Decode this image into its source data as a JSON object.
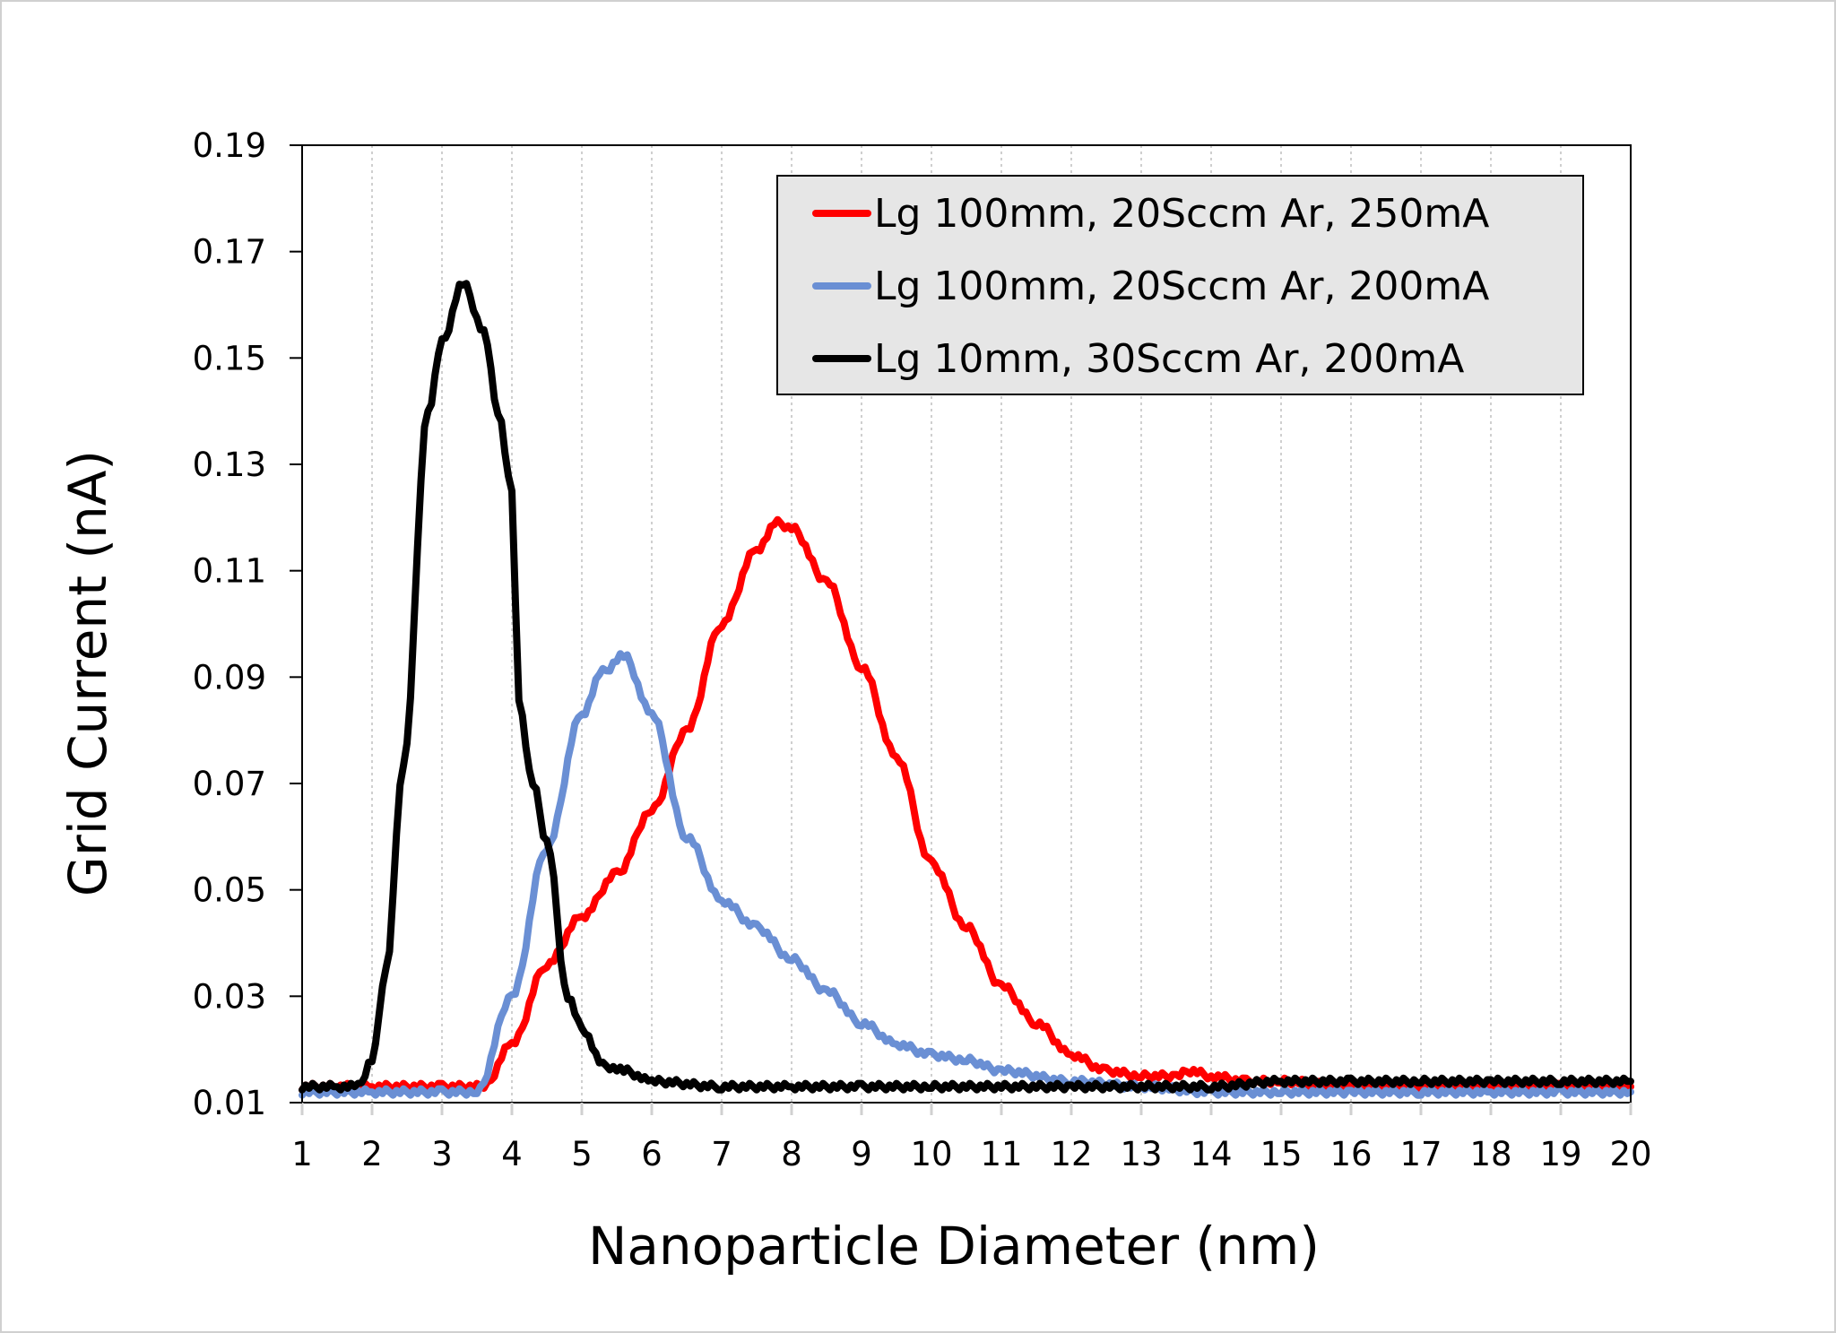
{
  "chart_data": {
    "type": "line",
    "title": "",
    "xlabel": "Nanoparticle Diameter (nm)",
    "ylabel": "Grid Current (nA)",
    "xlim": [
      1,
      20
    ],
    "ylim": [
      0.01,
      0.19
    ],
    "xticks": [
      "1",
      "2",
      "3",
      "4",
      "5",
      "6",
      "7",
      "8",
      "9",
      "10",
      "11",
      "12",
      "13",
      "14",
      "15",
      "16",
      "17",
      "18",
      "19",
      "20"
    ],
    "yticks": [
      "0.01",
      "0.03",
      "0.05",
      "0.07",
      "0.09",
      "0.11",
      "0.13",
      "0.15",
      "0.17",
      "0.19"
    ],
    "grid": "vertical-dotted",
    "legend_position": "top-right",
    "series": [
      {
        "name": "Lg 100mm, 20Sccm Ar, 250mA",
        "color": "#ff0000",
        "x": [
          1,
          2,
          3,
          3.6,
          4,
          4.5,
          5,
          5.5,
          6,
          6.5,
          7,
          7.5,
          7.8,
          8,
          8.5,
          9,
          9.5,
          10,
          10.5,
          11,
          11.5,
          12,
          12.5,
          13,
          13.5,
          13.7,
          14,
          14.5,
          15,
          16,
          17,
          18,
          19,
          20
        ],
        "y": [
          0.013,
          0.013,
          0.013,
          0.013,
          0.021,
          0.036,
          0.045,
          0.053,
          0.065,
          0.08,
          0.1,
          0.114,
          0.119,
          0.118,
          0.108,
          0.092,
          0.075,
          0.055,
          0.043,
          0.032,
          0.025,
          0.019,
          0.016,
          0.015,
          0.015,
          0.016,
          0.015,
          0.014,
          0.014,
          0.013,
          0.013,
          0.013,
          0.013,
          0.013
        ]
      },
      {
        "name": "Lg 100mm, 20Sccm Ar, 200mA",
        "color": "#6a8fd4",
        "x": [
          1,
          2,
          3,
          3.5,
          4,
          4.5,
          5,
          5.3,
          5.6,
          6,
          6.5,
          7,
          7.5,
          8,
          8.5,
          9,
          9.5,
          10,
          10.5,
          11,
          12,
          13,
          14,
          15,
          16,
          17,
          18,
          19,
          20
        ],
        "y": [
          0.012,
          0.012,
          0.012,
          0.012,
          0.03,
          0.058,
          0.083,
          0.091,
          0.094,
          0.083,
          0.06,
          0.048,
          0.043,
          0.037,
          0.031,
          0.025,
          0.021,
          0.019,
          0.018,
          0.016,
          0.014,
          0.013,
          0.012,
          0.012,
          0.012,
          0.012,
          0.012,
          0.012,
          0.012
        ]
      },
      {
        "name": "Lg 10mm, 30Sccm Ar, 200mA",
        "color": "#000000",
        "x": [
          1,
          1.5,
          1.8,
          2,
          2.2,
          2.45,
          2.8,
          3,
          3.3,
          3.6,
          3.8,
          4,
          4.1,
          4.3,
          4.5,
          4.8,
          5,
          5.3,
          5.6,
          6,
          7,
          8,
          9,
          10,
          12,
          14,
          15,
          16,
          17,
          18,
          19,
          20
        ],
        "y": [
          0.013,
          0.013,
          0.013,
          0.018,
          0.035,
          0.074,
          0.14,
          0.153,
          0.164,
          0.155,
          0.14,
          0.125,
          0.085,
          0.07,
          0.059,
          0.03,
          0.024,
          0.017,
          0.016,
          0.014,
          0.013,
          0.013,
          0.013,
          0.013,
          0.013,
          0.013,
          0.014,
          0.014,
          0.014,
          0.014,
          0.014,
          0.014
        ]
      }
    ]
  }
}
